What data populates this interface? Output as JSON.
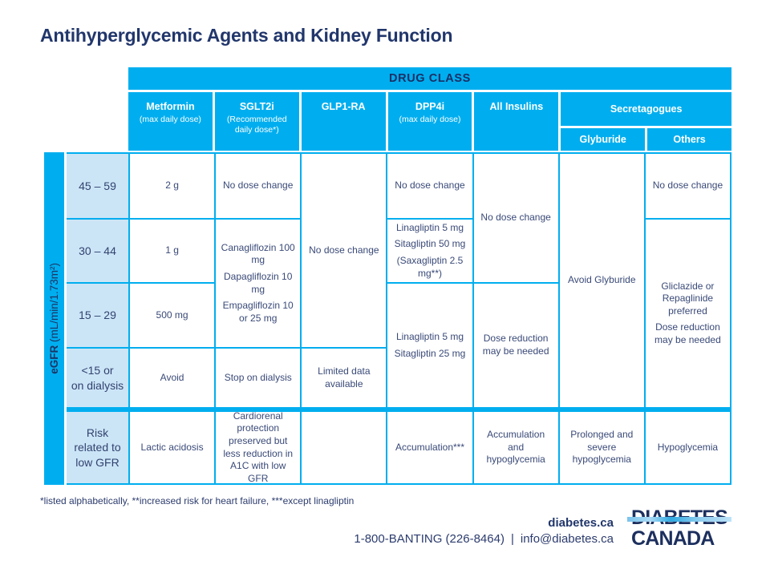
{
  "title": "Antihyperglycemic Agents and Kidney Function",
  "colors": {
    "cyan": "#00AEEF",
    "navy": "#21366B",
    "label_bg": "#CBE5F7",
    "cell_text": "#3A4A78"
  },
  "table": {
    "drug_class_header": "DRUG CLASS",
    "columns": {
      "metformin": {
        "name": "Metformin",
        "sub": "(max daily dose)"
      },
      "sglt2i": {
        "name": "SGLT2i",
        "sub": "(Recommended daily dose*)"
      },
      "glp1ra": {
        "name": "GLP1-RA"
      },
      "dpp4i": {
        "name": "DPP4i",
        "sub": "(max daily dose)"
      },
      "insulins": {
        "name": "All Insulins"
      },
      "secretagogues": {
        "name": "Secretagogues",
        "sub_glyburide": "Glyburide",
        "sub_others": "Others"
      }
    },
    "egfr_axis": {
      "bold": "eGFR",
      "rest": " (mL/min/1.73m²)"
    },
    "row_labels": [
      "45 – 59",
      "30 – 44",
      "15 – 29",
      "<15 or\non dialysis",
      "Risk\nrelated to\nlow GFR"
    ]
  },
  "cells": {
    "metformin": {
      "r1": "2 g",
      "r2": "1 g",
      "r3": "500 mg",
      "r4": "Avoid",
      "risk": "Lactic acidosis"
    },
    "sglt2i": {
      "r1": "No dose change",
      "r2_3": [
        "Canagliflozin 100 mg",
        "Dapagliflozin 10 mg",
        "Empagliflozin 10 or 25 mg"
      ],
      "r4": "Stop on dialysis",
      "risk": "Cardiorenal protection preserved but less reduction in A1C with low GFR"
    },
    "glp1ra": {
      "r1_3": "No dose change",
      "r4": "Limited data available",
      "risk": ""
    },
    "dpp4i": {
      "r1": "No dose change",
      "r2": [
        "Linagliptin 5 mg",
        "Sitagliptin 50 mg",
        "(Saxagliptin 2.5 mg**)"
      ],
      "r3_4": [
        "Linagliptin 5 mg",
        "Sitagliptin 25 mg"
      ],
      "risk": "Accumulation***"
    },
    "insulins": {
      "r1_2": "No dose change",
      "r3_4": "Dose reduction may be needed",
      "risk": "Accumulation and hypoglycemia"
    },
    "glyburide": {
      "r1_4": "Avoid Glyburide",
      "risk": "Prolonged and severe hypoglycemia"
    },
    "others": {
      "r1": "No dose change",
      "r2_4": [
        "Gliclazide or Repaglinide preferred",
        "Dose reduction may be needed"
      ],
      "risk": "Hypoglycemia"
    }
  },
  "footnote": "*listed alphabetically, **increased risk for heart failure, ***except linagliptin",
  "footer": {
    "website": "diabetes.ca",
    "phone": "1-800-BANTING (226-8464)",
    "separator": "|",
    "email": "info@diabetes.ca",
    "logo_line1": "DIABETES",
    "logo_line2": "CANADA"
  }
}
